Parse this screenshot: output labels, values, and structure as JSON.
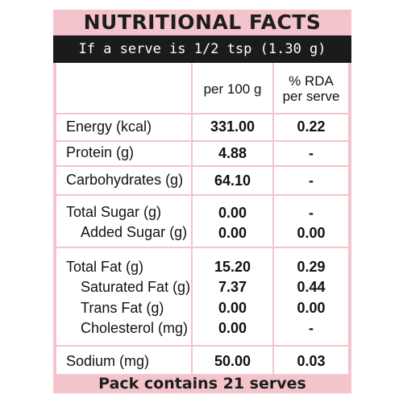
{
  "title": "NUTRITIONAL FACTS",
  "serving": "If a serve is 1/2 tsp (1.30 g)",
  "columns": {
    "per100": "per 100 g",
    "rda_line1": "% RDA",
    "rda_line2": "per serve"
  },
  "rows": [
    {
      "label": "Energy (kcal)",
      "per100": "331.00",
      "rda": "0.22"
    },
    {
      "label": "Protein (g)",
      "per100": "4.88",
      "rda": "-"
    },
    {
      "label": "Carbohydrates (g)",
      "per100": "64.10",
      "rda": "-"
    },
    {
      "label": "Total Sugar (g)",
      "per100": "0.00",
      "rda": "-"
    },
    {
      "label": "Added Sugar (g)",
      "per100": "0.00",
      "rda": "0.00"
    },
    {
      "label": "Total Fat (g)",
      "per100": "15.20",
      "rda": "0.29"
    },
    {
      "label": "Saturated Fat (g)",
      "per100": "7.37",
      "rda": "0.44"
    },
    {
      "label": "Trans Fat (g)",
      "per100": "0.00",
      "rda": "0.00"
    },
    {
      "label": "Cholesterol (mg)",
      "per100": "0.00",
      "rda": "-"
    },
    {
      "label": "Sodium (mg)",
      "per100": "50.00",
      "rda": "0.03"
    }
  ],
  "footer": "Pack contains 21 serves",
  "colors": {
    "panel_pink": "#f4c4cc",
    "serve_bar": "#1c1b1b"
  }
}
